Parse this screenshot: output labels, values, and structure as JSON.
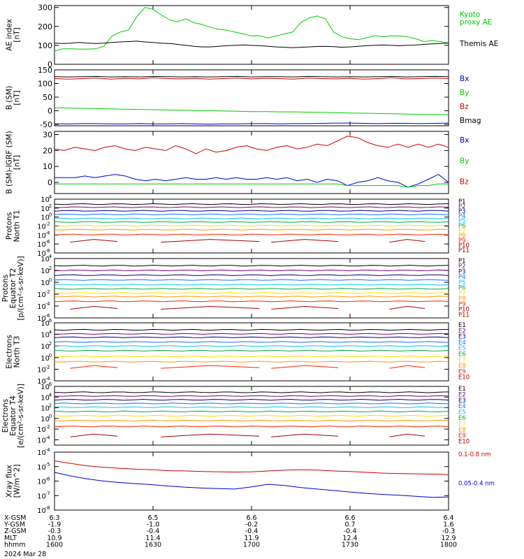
{
  "chart_data": [
    {
      "type": "line",
      "ylabel": "AE index\n[nT]",
      "yticks": [
        "0",
        "100",
        "200",
        "300"
      ],
      "ylim": [
        0,
        310
      ],
      "scale": "linear",
      "series": [
        {
          "name": "Kyoto\nproxy AE",
          "color": "#00cc00",
          "values": [
            70,
            82,
            82,
            80,
            80,
            82,
            95,
            150,
            170,
            180,
            250,
            300,
            290,
            260,
            235,
            225,
            240,
            220,
            210,
            195,
            185,
            180,
            170,
            160,
            150,
            150,
            140,
            150,
            160,
            170,
            220,
            245,
            255,
            240,
            170,
            145,
            135,
            130,
            140,
            152,
            145,
            150,
            150,
            145,
            135,
            120,
            125,
            120,
            112
          ]
        },
        {
          "name": "Themis AE",
          "color": "#000000",
          "values": [
            112,
            110,
            112,
            115,
            112,
            110,
            112,
            115,
            118,
            120,
            122,
            118,
            115,
            112,
            110,
            105,
            100,
            95,
            92,
            92,
            95,
            98,
            100,
            102,
            100,
            98,
            95,
            92,
            90,
            88,
            90,
            92,
            94,
            95,
            93,
            90,
            92,
            95,
            98,
            100,
            102,
            100,
            98,
            100,
            102,
            105,
            108,
            110,
            112
          ]
        }
      ]
    },
    {
      "type": "line",
      "ylabel": "B (SM)\n[nT]",
      "yticks": [
        "-50",
        "0",
        "50",
        "100",
        "150"
      ],
      "ylim": [
        -55,
        150
      ],
      "scale": "linear",
      "series": [
        {
          "name": "Bx",
          "color": "#0000cc",
          "values": [
            -48,
            -48,
            -47,
            -47,
            -48,
            -48,
            -47,
            -48,
            -48,
            -47,
            -48,
            -49,
            -48,
            -48,
            -47,
            -47,
            -48,
            -47,
            -47,
            -46,
            -45,
            -45,
            -46,
            -47,
            -46,
            -46,
            -47,
            -46,
            -45
          ]
        },
        {
          "name": "By",
          "color": "#00cc00",
          "values": [
            11,
            10,
            9,
            8,
            7,
            6,
            5,
            4,
            3,
            2,
            1,
            0,
            -1,
            -2,
            -3,
            -3,
            -4,
            -4,
            -5,
            -6,
            -7,
            -8,
            -9,
            -10,
            -11,
            -12,
            -13,
            -14,
            -15
          ]
        },
        {
          "name": "Bz",
          "color": "#cc0000",
          "values": [
            118,
            116,
            118,
            120,
            116,
            119,
            117,
            121,
            118,
            117,
            119,
            116,
            118,
            120,
            117,
            119,
            118,
            116,
            120,
            118,
            117,
            119,
            116,
            118,
            121,
            117,
            118,
            120,
            118
          ]
        },
        {
          "name": "Bmag",
          "color": "#000000",
          "values": [
            125,
            124,
            125,
            126,
            124,
            125,
            124,
            126,
            125,
            124,
            125,
            124,
            125,
            126,
            124,
            125,
            125,
            124,
            126,
            125,
            124,
            125,
            124,
            125,
            126,
            124,
            125,
            126,
            125
          ]
        }
      ]
    },
    {
      "type": "line",
      "ylabel": "B (SM)-IGRF (SM)\n[nT]",
      "yticks": [
        "0",
        "10",
        "20",
        "30"
      ],
      "ylim": [
        -7,
        32
      ],
      "scale": "linear",
      "series": [
        {
          "name": "Bx",
          "color": "#0000cc",
          "values": [
            3,
            3,
            3,
            4,
            3,
            4,
            5,
            4,
            2,
            1,
            2,
            1,
            2,
            3,
            2,
            2,
            3,
            2,
            3,
            2,
            2,
            3,
            2,
            3,
            1,
            2,
            0,
            2,
            1,
            -2,
            0,
            1,
            3,
            1,
            0,
            -3,
            -1,
            2,
            5,
            0
          ]
        },
        {
          "name": "By",
          "color": "#00cc00",
          "values": [
            -1,
            -1,
            -1,
            -1,
            -1,
            -1,
            -1,
            -1,
            -1,
            -1,
            -1,
            -1,
            -1,
            -1,
            -1,
            -1,
            -1,
            -1,
            -1,
            -1,
            -1,
            -1,
            -1,
            -1,
            -1,
            -1,
            -1,
            -1,
            -1,
            -2,
            -2,
            -2,
            -2,
            -2,
            -2,
            -3,
            -2,
            -2,
            -1,
            -1
          ]
        },
        {
          "name": "Bz",
          "color": "#cc0000",
          "values": [
            21,
            20,
            22,
            21,
            20,
            22,
            23,
            21,
            20,
            22,
            21,
            20,
            23,
            21,
            18,
            21,
            19,
            20,
            22,
            23,
            21,
            20,
            22,
            23,
            21,
            22,
            24,
            23,
            26,
            29,
            28,
            25,
            23,
            22,
            24,
            22,
            24,
            22,
            24,
            22
          ]
        }
      ]
    },
    {
      "type": "line",
      "ylabel": "Protons\nNorth T1",
      "yticks": [
        "10^4",
        "10^2",
        "10^0",
        "10^-2",
        "10^-4",
        "10^-6",
        "10^-8"
      ],
      "ylim": [
        -8,
        4
      ],
      "scale": "log",
      "series": [
        {
          "name": "P1",
          "color": "#000000",
          "level": 2.9
        },
        {
          "name": "P2",
          "color": "#7a007a",
          "level": 2.2
        },
        {
          "name": "P3",
          "color": "#00008b",
          "level": 1.4
        },
        {
          "name": "P4",
          "color": "#1e6cff",
          "level": 0.6
        },
        {
          "name": "P5",
          "color": "#00c8ff",
          "level": -0.3
        },
        {
          "name": "P6",
          "color": "#00aa44",
          "level": -1.1
        },
        {
          "name": "P7",
          "color": "#ffdd00",
          "level": -1.9
        },
        {
          "name": "P8",
          "color": "#ff9900",
          "level": -2.8
        },
        {
          "name": "P9",
          "color": "#ff2200",
          "level": -3.9
        },
        {
          "name": "P10",
          "color": "#aa0000",
          "level": -5.3,
          "dashed": true
        }
      ],
      "labels_extra": [
        "P11"
      ]
    },
    {
      "type": "line",
      "ylabel": "Protons\nEquator T2\n[p/(cm²-s-sr-keV)]",
      "yticks": [
        "10^4",
        "10^2",
        "10^0",
        "10^-2",
        "10^-4",
        "10^-6"
      ],
      "ylim": [
        -6,
        4
      ],
      "scale": "log",
      "series": [
        {
          "name": "P1",
          "color": "#000000",
          "level": 2.8
        },
        {
          "name": "P2",
          "color": "#7a007a",
          "level": 2.0
        },
        {
          "name": "P3",
          "color": "#00008b",
          "level": 1.2
        },
        {
          "name": "P4",
          "color": "#1e6cff",
          "level": 0.4
        },
        {
          "name": "P5",
          "color": "#00c8ff",
          "level": -0.4
        },
        {
          "name": "P6",
          "color": "#00aa44",
          "level": -1.1
        },
        {
          "name": "P7",
          "color": "#ffdd00",
          "level": -1.8
        },
        {
          "name": "P8",
          "color": "#ff9900",
          "level": -2.4
        },
        {
          "name": "P9",
          "color": "#ff2200",
          "level": -3.2
        },
        {
          "name": "P10",
          "color": "#aa0000",
          "level": -4.3,
          "dashed": true
        }
      ],
      "labels_extra": [
        "P11"
      ]
    },
    {
      "type": "line",
      "ylabel": "Electrons\nNorth T3",
      "yticks": [
        "10^6",
        "10^4",
        "10^2",
        "10^0",
        "10^-2",
        "10^-4"
      ],
      "ylim": [
        -4,
        6
      ],
      "scale": "log",
      "series": [
        {
          "name": "E1",
          "color": "#000000",
          "level": 4.8
        },
        {
          "name": "E2",
          "color": "#7a007a",
          "level": 4.1
        },
        {
          "name": "E3",
          "color": "#00008b",
          "level": 3.5
        },
        {
          "name": "E4",
          "color": "#1e6cff",
          "level": 2.7
        },
        {
          "name": "E5",
          "color": "#00c8ff",
          "level": 2.0
        },
        {
          "name": "E6",
          "color": "#00aa44",
          "level": 1.2
        },
        {
          "name": "E7",
          "color": "#ffdd00",
          "level": 0.2
        },
        {
          "name": "E8",
          "color": "#ff9900",
          "level": -0.7
        },
        {
          "name": "E9",
          "color": "#ff2200",
          "level": -1.6,
          "dashed": true
        }
      ],
      "labels_extra": [
        "E10"
      ]
    },
    {
      "type": "line",
      "ylabel": "Electrons\nEquator T4\n[e/(cm²-s-sr-keV)]",
      "yticks": [
        "10^6",
        "10^4",
        "10^2",
        "10^0",
        "10^-2",
        "10^-4"
      ],
      "ylim": [
        -5,
        6
      ],
      "scale": "log",
      "series": [
        {
          "name": "E1",
          "color": "#000000",
          "level": 4.9
        },
        {
          "name": "E2",
          "color": "#7a007a",
          "level": 4.2
        },
        {
          "name": "E3",
          "color": "#00008b",
          "level": 3.5
        },
        {
          "name": "E4",
          "color": "#1e6cff",
          "level": 2.8
        },
        {
          "name": "E5",
          "color": "#00c8ff",
          "level": 2.1
        },
        {
          "name": "E6",
          "color": "#00aa44",
          "level": 1.3
        },
        {
          "name": "E7",
          "color": "#ffdd00",
          "level": 0.5
        },
        {
          "name": "E8",
          "color": "#ff9900",
          "level": -0.4
        },
        {
          "name": "E9",
          "color": "#ff2200",
          "level": -1.5
        },
        {
          "name": "E10",
          "color": "#aa0000",
          "level": -3.2,
          "dashed": true
        }
      ]
    },
    {
      "type": "line",
      "ylabel": "Xray flux\n[W/m^2]",
      "yticks": [
        "10^-4",
        "10^-5",
        "10^-6",
        "10^-7",
        "10^-8"
      ],
      "ylim": [
        -8,
        -4
      ],
      "scale": "log",
      "series": [
        {
          "name": "0.1-0.8 nm",
          "color": "#cc0000",
          "values": [
            -4.6,
            -4.78,
            -4.95,
            -5.05,
            -5.12,
            -5.18,
            -5.22,
            -5.28,
            -5.3,
            -5.34,
            -5.36,
            -5.38,
            -5.36,
            -5.3,
            -5.25,
            -5.22,
            -5.24,
            -5.3,
            -5.34,
            -5.4,
            -5.45,
            -5.48,
            -5.5,
            -5.52,
            -5.55
          ]
        },
        {
          "name": "0.05-0.4 nm",
          "color": "#0000cc",
          "values": [
            -5.4,
            -5.65,
            -5.85,
            -6.0,
            -6.1,
            -6.18,
            -6.25,
            -6.35,
            -6.42,
            -6.48,
            -6.52,
            -6.55,
            -6.4,
            -6.22,
            -6.3,
            -6.45,
            -6.55,
            -6.65,
            -6.75,
            -6.85,
            -6.92,
            -6.98,
            -7.05,
            -7.12,
            -7.1
          ]
        }
      ]
    }
  ],
  "bottom_axis": {
    "rows": [
      {
        "label": "X-GSM",
        "values": [
          "6.3",
          "6.5",
          "6.6",
          "6.6",
          "6.4"
        ]
      },
      {
        "label": "Y-GSM",
        "values": [
          "-1.9",
          "-1.0",
          "-0.2",
          "0.7",
          "1.6"
        ]
      },
      {
        "label": "Z-GSM",
        "values": [
          "-0.3",
          "-0.4",
          "-0.4",
          "-0.4",
          "-0.3"
        ]
      },
      {
        "label": "MLT",
        "values": [
          "10.9",
          "11.4",
          "11.9",
          "12.4",
          "12.9"
        ]
      },
      {
        "label": "hhmm",
        "values": [
          "1600",
          "1630",
          "1700",
          "1730",
          "1800"
        ]
      }
    ],
    "date": "2024 Mar 28"
  }
}
